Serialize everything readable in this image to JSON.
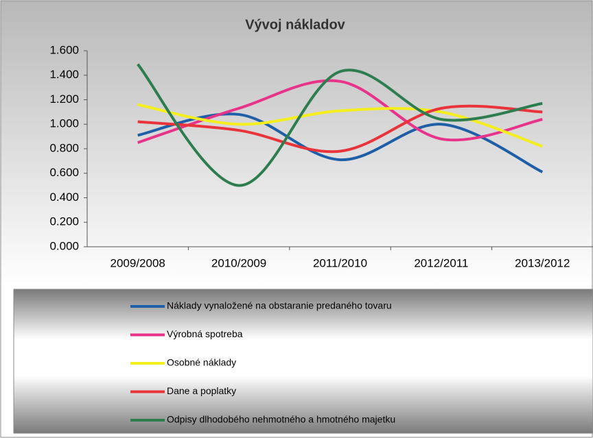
{
  "chart_data": {
    "type": "line",
    "title": "Vývoj nákladov",
    "categories": [
      "2009/2008",
      "2010/2009",
      "2011/2010",
      "2012/2011",
      "2013/2012"
    ],
    "series": [
      {
        "name": "Náklady vynaložené na obstaranie predaného tovaru",
        "color": "#1f5fa8",
        "values": [
          0.91,
          1.08,
          0.71,
          1.0,
          0.61
        ]
      },
      {
        "name": "Výrobná spotreba",
        "color": "#e8338a",
        "values": [
          0.85,
          1.13,
          1.35,
          0.88,
          1.04
        ]
      },
      {
        "name": "Osobné náklady",
        "color": "#f4ee1e",
        "values": [
          1.16,
          1.0,
          1.11,
          1.1,
          0.82
        ]
      },
      {
        "name": "Dane a poplatky",
        "color": "#e8343a",
        "values": [
          1.02,
          0.95,
          0.78,
          1.13,
          1.1
        ]
      },
      {
        "name": "Odpisy dlhodobého nehmotného a hmotného majetku",
        "color": "#2e7d4f",
        "values": [
          1.49,
          0.5,
          1.43,
          1.04,
          1.17
        ]
      }
    ],
    "ylim": [
      0,
      1.6
    ],
    "yticks": [
      {
        "value": 0,
        "label": "0.000"
      },
      {
        "value": 0.2,
        "label": "0.200"
      },
      {
        "value": 0.4,
        "label": "0.400"
      },
      {
        "value": 0.6,
        "label": "0.600"
      },
      {
        "value": 0.8,
        "label": "0.800"
      },
      {
        "value": 1.0,
        "label": "1.000"
      },
      {
        "value": 1.2,
        "label": "1.200"
      },
      {
        "value": 1.4,
        "label": "1.400"
      },
      {
        "value": 1.6,
        "label": "1.600"
      }
    ],
    "legend": "bottom",
    "smooth": true
  }
}
